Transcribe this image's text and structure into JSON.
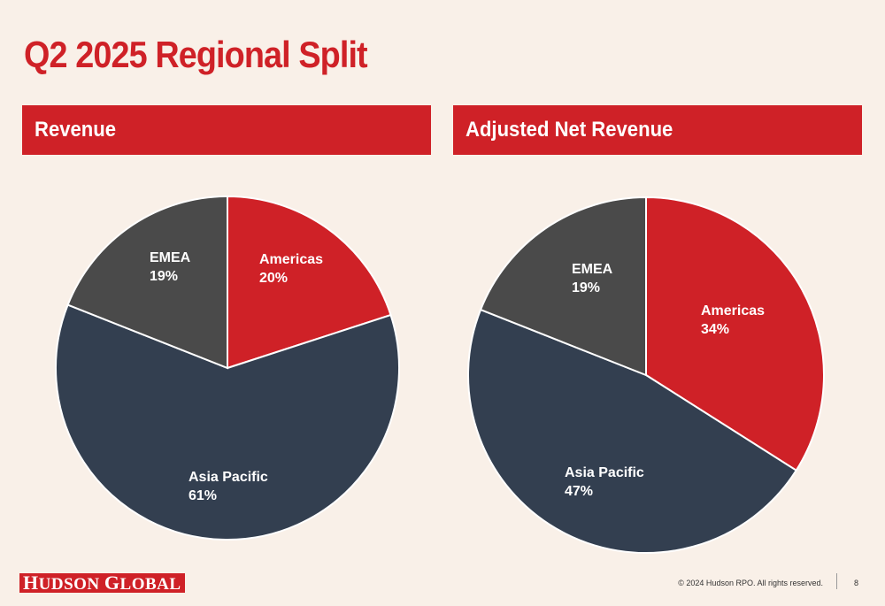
{
  "title": "Q2 2025 Regional Split",
  "colors": {
    "accent": "#cf2127",
    "background": "#f9f0e8",
    "americas": "#cf2127",
    "emea": "#4a4a4a",
    "asia_pacific": "#333f50"
  },
  "chart_data": [
    {
      "type": "pie",
      "title": "Revenue",
      "slices": [
        {
          "label": "Americas",
          "value": 20,
          "display": "20%"
        },
        {
          "label": "Asia Pacific",
          "value": 61,
          "display": "61%"
        },
        {
          "label": "EMEA",
          "value": 19,
          "display": "19%"
        }
      ]
    },
    {
      "type": "pie",
      "title": "Adjusted Net Revenue",
      "slices": [
        {
          "label": "Americas",
          "value": 34,
          "display": "34%"
        },
        {
          "label": "Asia Pacific",
          "value": 47,
          "display": "47%"
        },
        {
          "label": "EMEA",
          "value": 19,
          "display": "19%"
        }
      ]
    }
  ],
  "footer": {
    "logo": "Hudson Global",
    "copyright": "© 2024 Hudson RPO. All rights reserved.",
    "page_number": "8"
  }
}
